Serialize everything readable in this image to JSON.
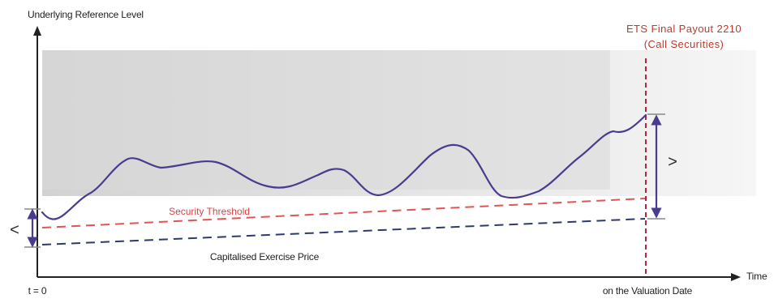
{
  "diagram": {
    "y_axis_label": "Underlying Reference Level",
    "x_axis_label": "Time",
    "origin_label": "t = 0",
    "valuation_label": "on the Valuation Date",
    "ets_title_line1": "ETS Final Payout 2210",
    "ets_title_line2": "(Call Securities)",
    "security_threshold_label": "Security Threshold",
    "exercise_price_label": "Capitalised Exercise Price",
    "left_comparison_symbol": "<",
    "right_comparison_symbol": ">",
    "colors": {
      "underlying_path": "#4b3b8f",
      "security_threshold": "#e05555",
      "exercise_price": "#2e3a6b",
      "ets_marker": "#b0283c",
      "axis": "#222222",
      "band": "#d8d8d8"
    }
  }
}
